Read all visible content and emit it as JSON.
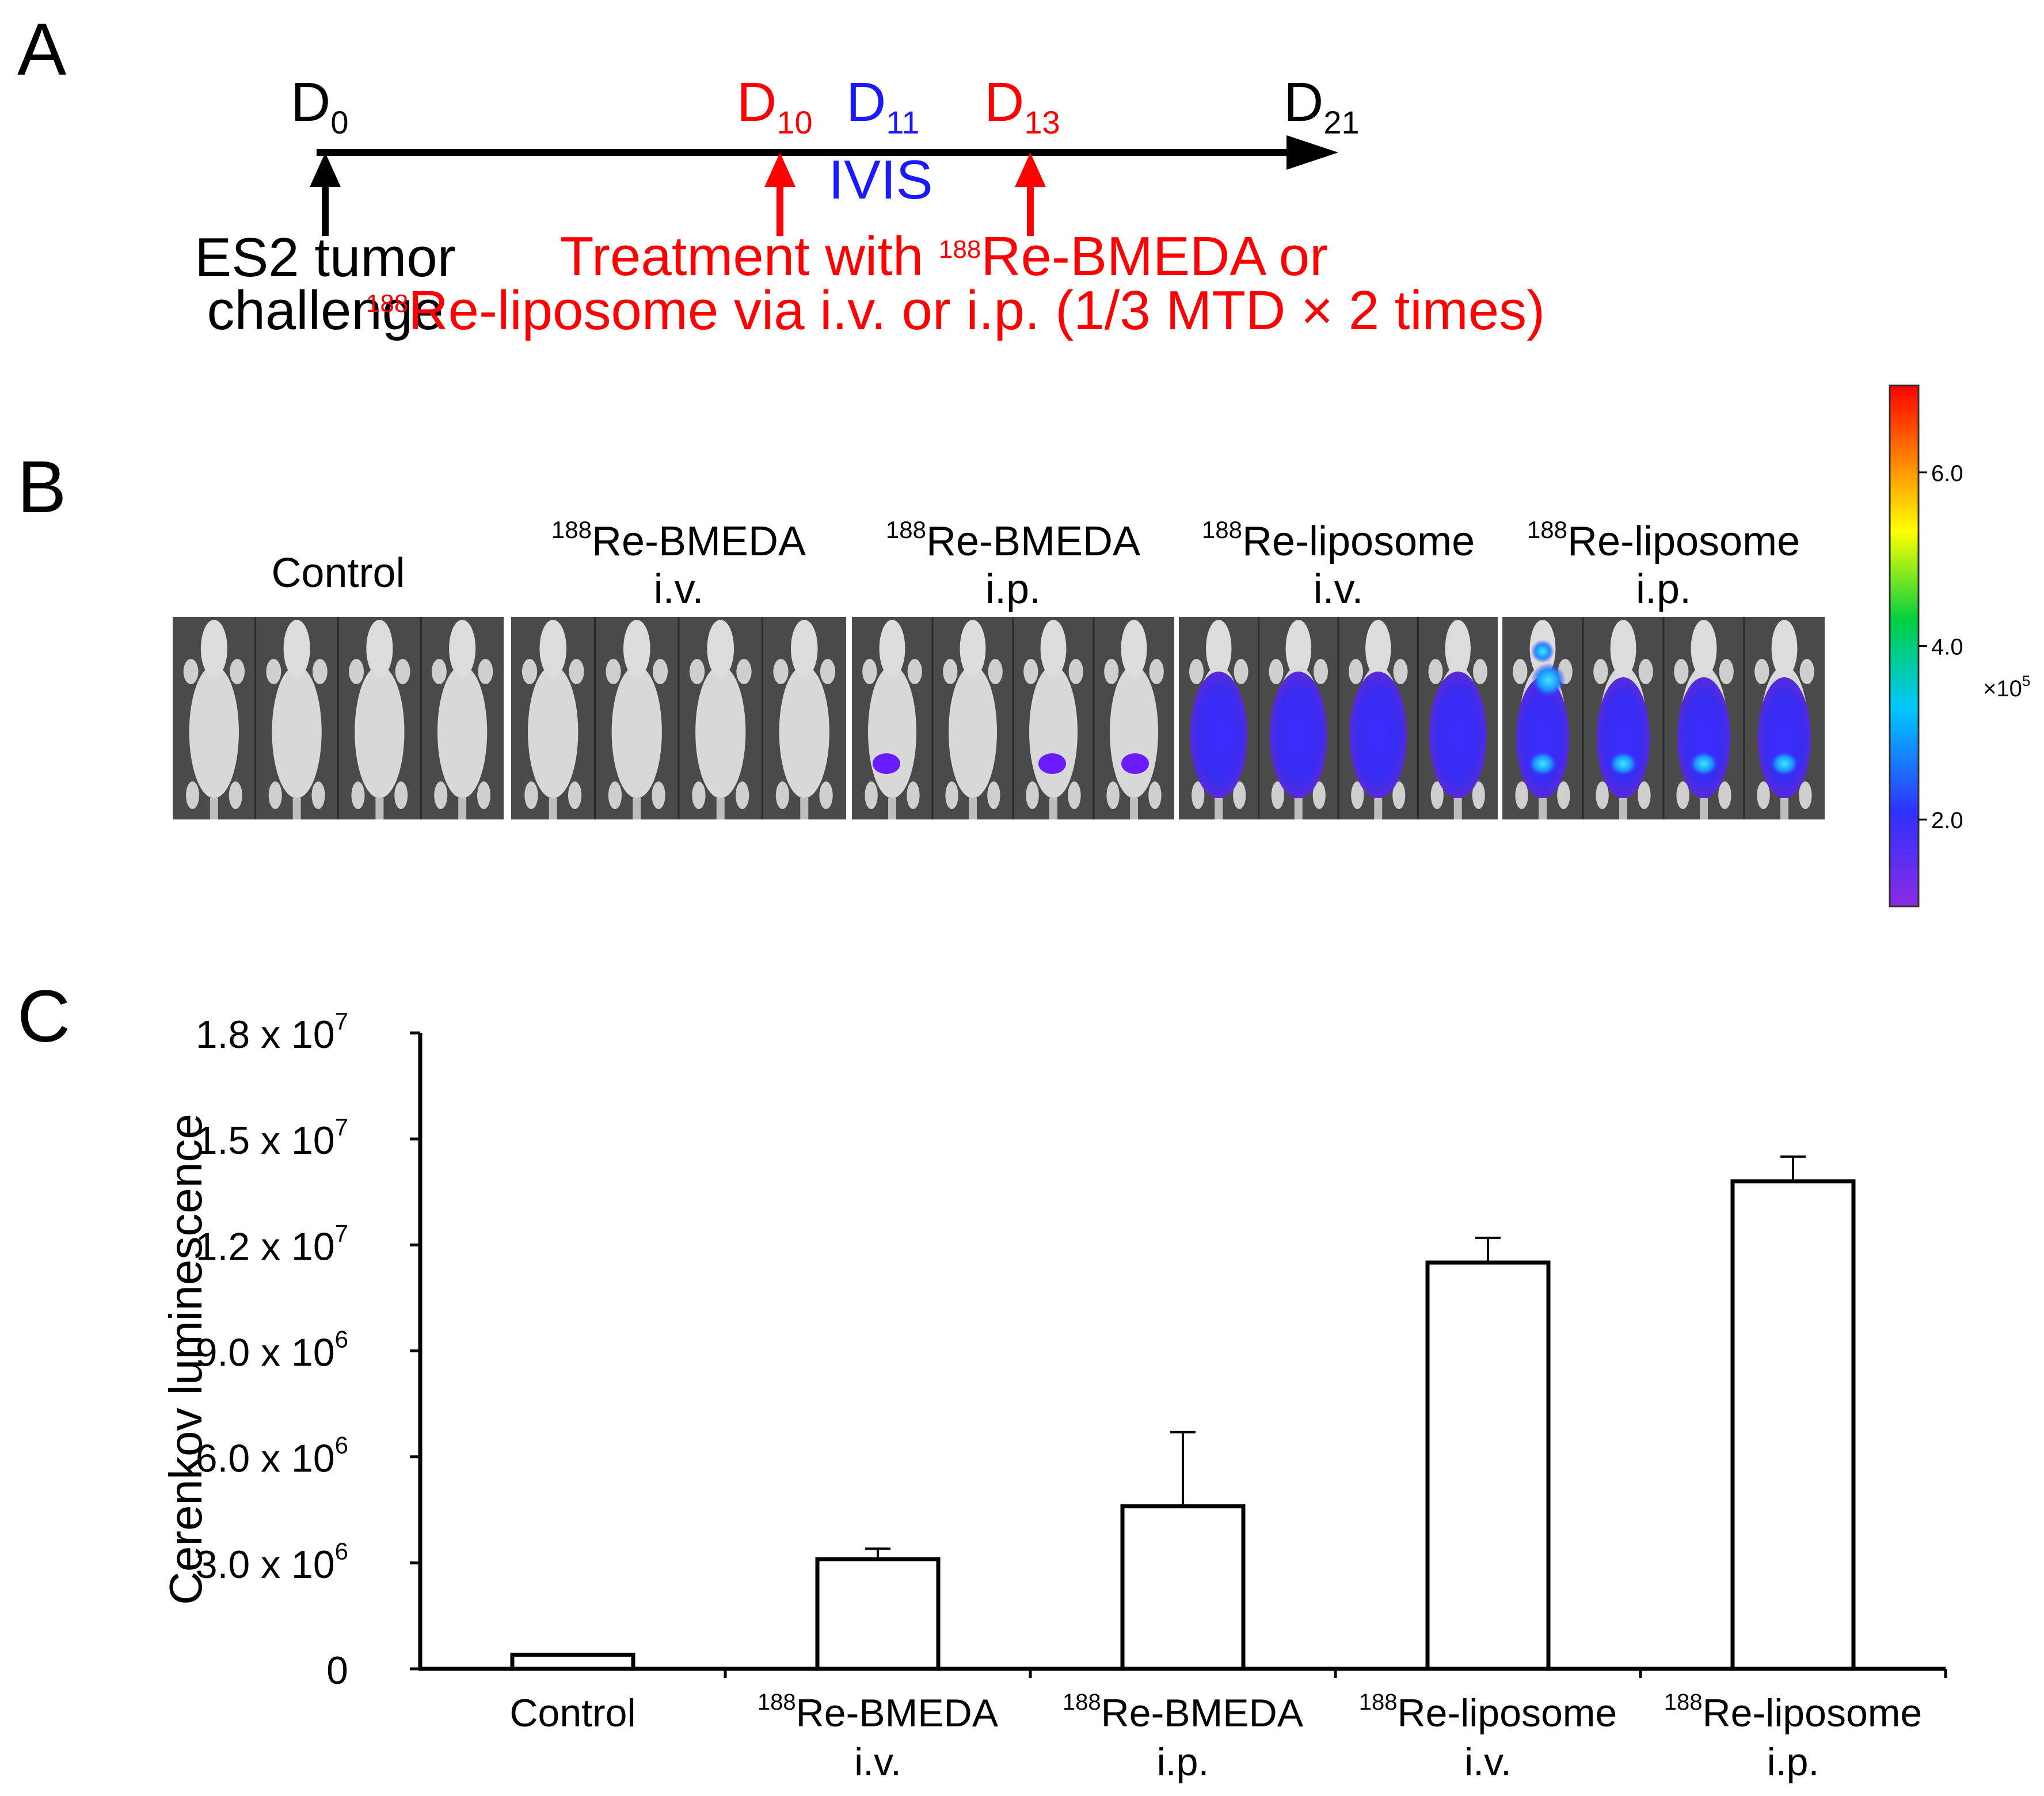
{
  "panels": {
    "a": "A",
    "b": "B",
    "c": "C"
  },
  "colors": {
    "red": "#ff0000",
    "blue": "#1a1aff",
    "black": "#000000"
  },
  "timeline": {
    "d0": {
      "main": "D",
      "sub": "0"
    },
    "d10": {
      "main": "D",
      "sub": "10"
    },
    "d11": {
      "main": "D",
      "sub": "11"
    },
    "d13": {
      "main": "D",
      "sub": "13"
    },
    "d21": {
      "main": "D",
      "sub": "21"
    },
    "ivis": "IVIS",
    "challenge_line1": "ES2 tumor",
    "challenge_line2": "challenge",
    "treat1_pre": "Treatment with ",
    "treat1_sup": "188",
    "treat1_post": "Re-BMEDA or",
    "treat2_sup": "188",
    "treat2_post": "Re-liposome via i.v. or i.p. (1/3 MTD × 2 times)"
  },
  "imaging": {
    "groups": [
      {
        "sup": "",
        "line1": "Control",
        "line2": ""
      },
      {
        "sup": "188",
        "line1": "Re-BMEDA",
        "line2": "i.v."
      },
      {
        "sup": "188",
        "line1": "Re-BMEDA",
        "line2": "i.p."
      },
      {
        "sup": "188",
        "line1": "Re-liposome",
        "line2": "i.v."
      },
      {
        "sup": "188",
        "line1": "Re-liposome",
        "line2": "i.p."
      }
    ],
    "colorbar": {
      "ticks": [
        "6.0",
        "4.0",
        "2.0"
      ],
      "tick_values": [
        6.0,
        4.0,
        2.0
      ],
      "range": [
        1.0,
        7.0
      ],
      "unit_base": "×10",
      "unit_exp": "5"
    }
  },
  "chart_data": {
    "type": "bar",
    "title": "",
    "ylabel": "Cerenkov luminescence",
    "xlabel": "",
    "ylim": [
      0,
      18000000
    ],
    "yticks": [
      {
        "value": 0,
        "mant": "0",
        "exp": ""
      },
      {
        "value": 3000000,
        "mant": "3.0 x 10",
        "exp": "6"
      },
      {
        "value": 6000000,
        "mant": "6.0 x 10",
        "exp": "6"
      },
      {
        "value": 9000000,
        "mant": "9.0 x 10",
        "exp": "6"
      },
      {
        "value": 12000000,
        "mant": "1.2 x 10",
        "exp": "7"
      },
      {
        "value": 15000000,
        "mant": "1.5 x 10",
        "exp": "7"
      },
      {
        "value": 18000000,
        "mant": "1.8 x 10",
        "exp": "7"
      }
    ],
    "categories": [
      {
        "sup": "",
        "line1": "Control",
        "line2": ""
      },
      {
        "sup": "188",
        "line1": "Re-BMEDA",
        "line2": "i.v."
      },
      {
        "sup": "188",
        "line1": "Re-BMEDA",
        "line2": "i.p."
      },
      {
        "sup": "188",
        "line1": "Re-liposome",
        "line2": "i.v."
      },
      {
        "sup": "188",
        "line1": "Re-liposome",
        "line2": "i.p."
      }
    ],
    "values": [
      400000,
      3100000,
      4600000,
      11500000,
      13800000
    ],
    "errors": [
      0,
      300000,
      2100000,
      700000,
      700000
    ]
  }
}
